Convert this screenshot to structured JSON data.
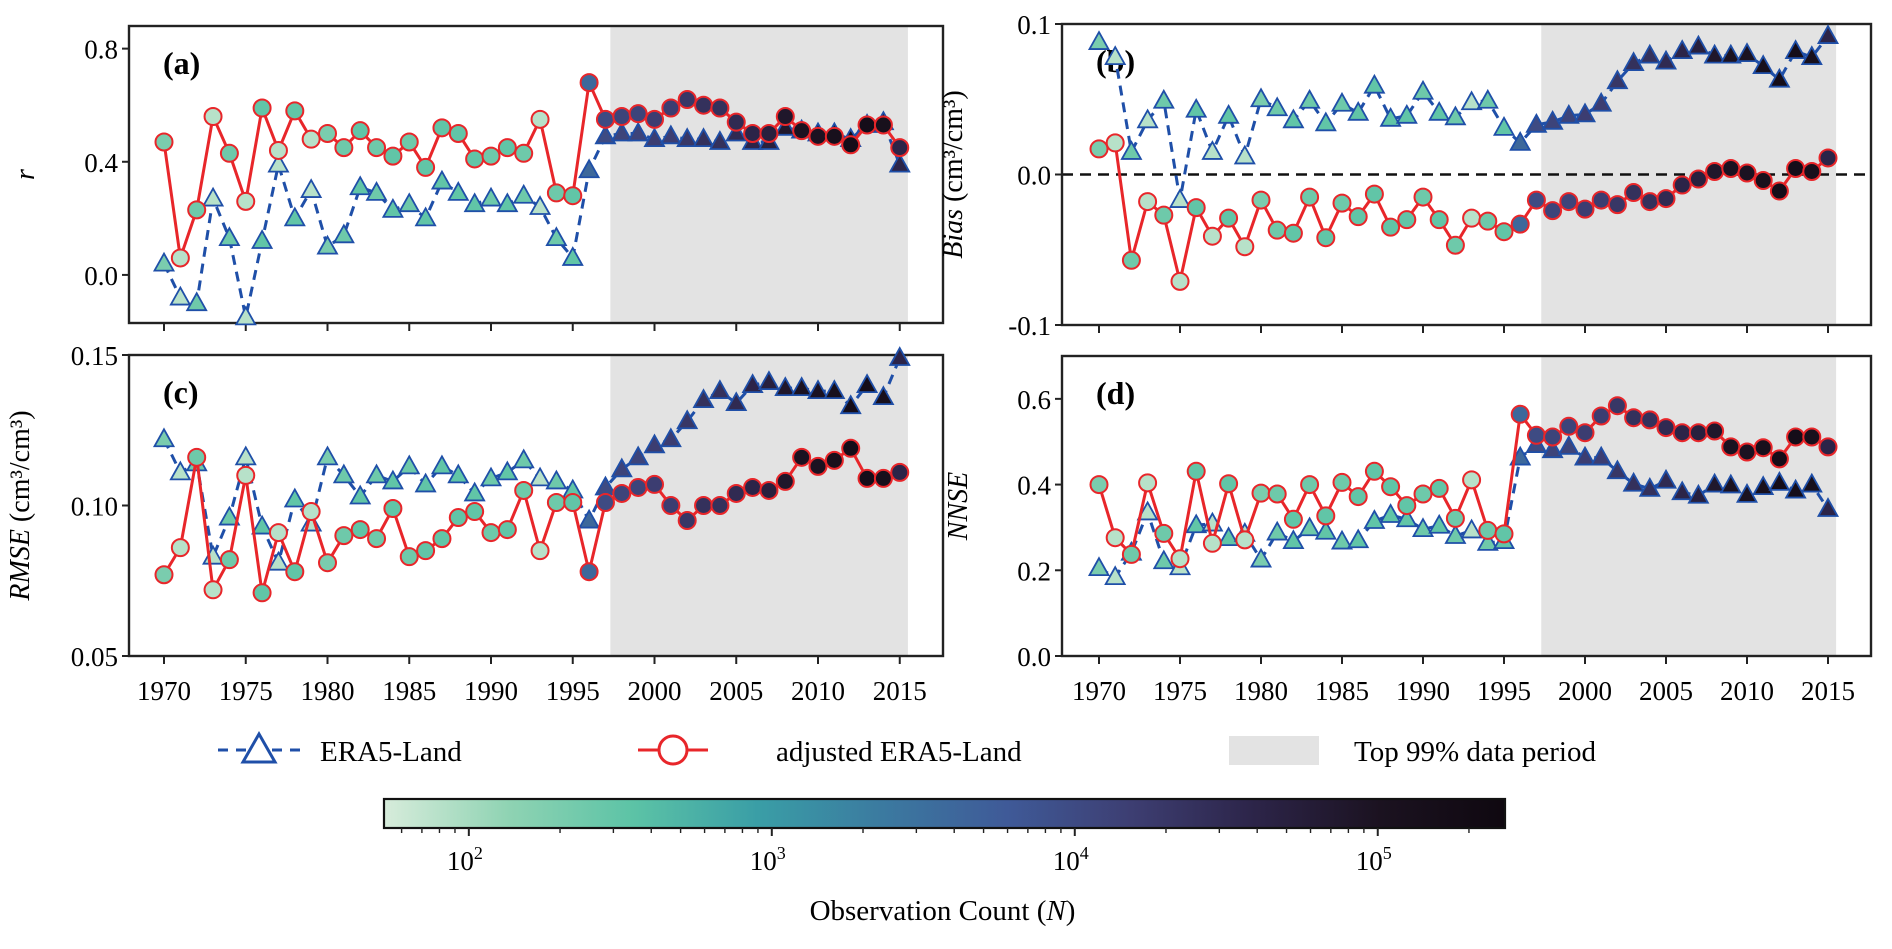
{
  "chart_data": {
    "type": "line",
    "years": [
      1970,
      1971,
      1972,
      1973,
      1974,
      1975,
      1976,
      1977,
      1978,
      1979,
      1980,
      1981,
      1982,
      1983,
      1984,
      1985,
      1986,
      1987,
      1988,
      1989,
      1990,
      1991,
      1992,
      1993,
      1994,
      1995,
      1996,
      1997,
      1998,
      1999,
      2000,
      2001,
      2002,
      2003,
      2004,
      2005,
      2006,
      2007,
      2008,
      2009,
      2010,
      2011,
      2012,
      2013,
      2014,
      2015
    ],
    "x_ticks": [
      1970,
      1975,
      1980,
      1985,
      1990,
      1995,
      2000,
      2005,
      2010,
      2015
    ],
    "xlim": [
      1967.8,
      2018.2
    ],
    "shaded_period": {
      "label": "Top 99% data period",
      "start": 1997.3,
      "end": 2015.5,
      "color": "#e3e3e3"
    },
    "log10_observation_count": [
      2.3,
      1.9,
      2.4,
      1.9,
      2.4,
      1.9,
      2.5,
      1.9,
      2.5,
      1.9,
      2.3,
      2.4,
      2.5,
      2.4,
      2.5,
      2.4,
      2.5,
      2.5,
      2.5,
      2.5,
      2.4,
      2.5,
      2.4,
      1.9,
      2.4,
      2.5,
      3.6,
      4.0,
      4.1,
      4.1,
      4.2,
      4.2,
      4.3,
      4.4,
      4.4,
      4.5,
      4.6,
      4.7,
      4.9,
      5.0,
      5.0,
      5.1,
      5.2,
      5.2,
      5.1,
      4.6
    ],
    "series_styles": {
      "ERA5-Land": {
        "line_color": "#1f4fa8",
        "dash": true,
        "marker": "triangle"
      },
      "adjusted ERA5-Land": {
        "line_color": "#e8262a",
        "dash": false,
        "marker": "circle"
      }
    },
    "panels": [
      {
        "id": "a",
        "tag": "(a)",
        "ylabel": "r",
        "ylabel_italic": true,
        "ylim": [
          -0.17,
          0.88
        ],
        "y_ticks": [
          0.0,
          0.4,
          0.8
        ],
        "y_tick_labels": [
          "0.0",
          "0.4",
          "0.8"
        ],
        "zero_line": false,
        "series": [
          {
            "name": "ERA5-Land",
            "values": [
              0.04,
              -0.08,
              -0.1,
              0.27,
              0.13,
              -0.15,
              0.12,
              0.39,
              0.2,
              0.3,
              0.1,
              0.14,
              0.31,
              0.29,
              0.23,
              0.25,
              0.2,
              0.33,
              0.29,
              0.25,
              0.27,
              0.25,
              0.28,
              0.24,
              0.13,
              0.06,
              0.37,
              0.49,
              0.5,
              0.5,
              0.48,
              0.49,
              0.48,
              0.48,
              0.47,
              0.5,
              0.47,
              0.47,
              0.52,
              0.51,
              0.5,
              0.5,
              0.48,
              0.53,
              0.54,
              0.39
            ]
          },
          {
            "name": "adjusted ERA5-Land",
            "values": [
              0.47,
              0.06,
              0.23,
              0.56,
              0.43,
              0.26,
              0.59,
              0.44,
              0.58,
              0.48,
              0.5,
              0.45,
              0.51,
              0.45,
              0.42,
              0.47,
              0.38,
              0.52,
              0.5,
              0.41,
              0.42,
              0.45,
              0.43,
              0.55,
              0.29,
              0.28,
              0.68,
              0.55,
              0.56,
              0.57,
              0.55,
              0.59,
              0.62,
              0.6,
              0.59,
              0.54,
              0.5,
              0.5,
              0.56,
              0.51,
              0.49,
              0.49,
              0.46,
              0.53,
              0.53,
              0.45
            ]
          }
        ]
      },
      {
        "id": "b",
        "tag": "(b)",
        "ylabel": "Bias",
        "ylabel_unit": "(cm³/cm³)",
        "ylabel_italic": true,
        "ylim": [
          -0.1,
          0.1
        ],
        "y_ticks": [
          -0.1,
          0.0,
          0.1
        ],
        "y_tick_labels": [
          "-0.1",
          "0.0",
          "0.1"
        ],
        "zero_line": true,
        "series": [
          {
            "name": "ERA5-Land",
            "values": [
              0.088,
              0.078,
              0.015,
              0.036,
              0.049,
              -0.017,
              0.043,
              0.015,
              0.039,
              0.012,
              0.05,
              0.044,
              0.036,
              0.049,
              0.034,
              0.047,
              0.041,
              0.059,
              0.037,
              0.039,
              0.055,
              0.041,
              0.038,
              0.048,
              0.049,
              0.031,
              0.021,
              0.033,
              0.035,
              0.039,
              0.04,
              0.047,
              0.062,
              0.074,
              0.079,
              0.075,
              0.082,
              0.085,
              0.079,
              0.079,
              0.08,
              0.072,
              0.063,
              0.082,
              0.078,
              0.092
            ]
          },
          {
            "name": "adjusted ERA5-Land",
            "values": [
              0.017,
              0.021,
              -0.057,
              -0.018,
              -0.027,
              -0.071,
              -0.022,
              -0.041,
              -0.029,
              -0.048,
              -0.017,
              -0.037,
              -0.039,
              -0.015,
              -0.042,
              -0.019,
              -0.028,
              -0.013,
              -0.035,
              -0.03,
              -0.015,
              -0.03,
              -0.047,
              -0.029,
              -0.031,
              -0.038,
              -0.033,
              -0.017,
              -0.024,
              -0.018,
              -0.023,
              -0.017,
              -0.02,
              -0.012,
              -0.018,
              -0.016,
              -0.007,
              -0.003,
              0.002,
              0.004,
              0.001,
              -0.004,
              -0.011,
              0.004,
              0.002,
              0.011
            ]
          }
        ]
      },
      {
        "id": "c",
        "tag": "(c)",
        "ylabel": "RMSE",
        "ylabel_unit": "(cm³/cm³)",
        "ylabel_italic": true,
        "ylim": [
          0.05,
          0.15
        ],
        "y_ticks": [
          0.05,
          0.1,
          0.15
        ],
        "y_tick_labels": [
          "0.05",
          "0.10",
          "0.15"
        ],
        "zero_line": false,
        "series": [
          {
            "name": "ERA5-Land",
            "values": [
              0.122,
              0.111,
              0.114,
              0.083,
              0.096,
              0.116,
              0.093,
              0.081,
              0.102,
              0.094,
              0.116,
              0.11,
              0.103,
              0.11,
              0.108,
              0.113,
              0.107,
              0.113,
              0.11,
              0.104,
              0.109,
              0.111,
              0.115,
              0.109,
              0.108,
              0.105,
              0.095,
              0.106,
              0.112,
              0.116,
              0.12,
              0.122,
              0.128,
              0.135,
              0.138,
              0.134,
              0.14,
              0.141,
              0.139,
              0.139,
              0.138,
              0.138,
              0.133,
              0.14,
              0.136,
              0.149
            ]
          },
          {
            "name": "adjusted ERA5-Land",
            "values": [
              0.077,
              0.086,
              0.116,
              0.072,
              0.082,
              0.11,
              0.071,
              0.091,
              0.078,
              0.098,
              0.081,
              0.09,
              0.092,
              0.089,
              0.099,
              0.083,
              0.085,
              0.089,
              0.096,
              0.098,
              0.091,
              0.092,
              0.105,
              0.085,
              0.101,
              0.101,
              0.078,
              0.101,
              0.104,
              0.106,
              0.107,
              0.1,
              0.095,
              0.1,
              0.1,
              0.104,
              0.106,
              0.105,
              0.108,
              0.116,
              0.113,
              0.115,
              0.119,
              0.109,
              0.109,
              0.111
            ]
          }
        ]
      },
      {
        "id": "d",
        "tag": "(d)",
        "ylabel": "NNSE",
        "ylabel_italic": true,
        "ylim": [
          0.0,
          0.7
        ],
        "y_ticks": [
          0.0,
          0.2,
          0.4,
          0.6
        ],
        "y_tick_labels": [
          "0.0",
          "0.2",
          "0.4",
          "0.6"
        ],
        "zero_line": false,
        "series": [
          {
            "name": "ERA5-Land",
            "values": [
              0.205,
              0.184,
              0.241,
              0.335,
              0.221,
              0.207,
              0.305,
              0.309,
              0.275,
              0.285,
              0.225,
              0.288,
              0.268,
              0.298,
              0.29,
              0.267,
              0.27,
              0.315,
              0.329,
              0.319,
              0.296,
              0.304,
              0.28,
              0.293,
              0.264,
              0.268,
              0.463,
              0.492,
              0.48,
              0.488,
              0.463,
              0.463,
              0.431,
              0.402,
              0.39,
              0.409,
              0.382,
              0.374,
              0.4,
              0.398,
              0.376,
              0.394,
              0.404,
              0.386,
              0.4,
              0.343
            ]
          },
          {
            "name": "adjusted ERA5-Land",
            "values": [
              0.4,
              0.276,
              0.237,
              0.404,
              0.286,
              0.227,
              0.431,
              0.263,
              0.402,
              0.271,
              0.38,
              0.378,
              0.319,
              0.4,
              0.327,
              0.405,
              0.372,
              0.431,
              0.395,
              0.351,
              0.378,
              0.391,
              0.321,
              0.411,
              0.293,
              0.285,
              0.564,
              0.515,
              0.511,
              0.536,
              0.521,
              0.56,
              0.584,
              0.556,
              0.551,
              0.533,
              0.521,
              0.521,
              0.525,
              0.488,
              0.476,
              0.486,
              0.46,
              0.511,
              0.511,
              0.488
            ]
          }
        ]
      }
    ],
    "legend": {
      "placement": "bottom-center",
      "items": [
        {
          "label": "ERA5-Land",
          "kind": "line-triangle-dashed"
        },
        {
          "label": "adjusted ERA5-Land",
          "kind": "line-circle"
        },
        {
          "label": "Top 99% data period",
          "kind": "patch"
        }
      ]
    },
    "colorbar": {
      "label": "Observation Count",
      "label_symbol": "N",
      "scale": "log",
      "range_log10": [
        1.72,
        5.42
      ],
      "ticks_log10": [
        2,
        3,
        4,
        5
      ],
      "tick_labels": [
        "10",
        "10",
        "10",
        "10"
      ],
      "tick_exponents": [
        "2",
        "3",
        "4",
        "5"
      ],
      "colormap_stops": [
        "#d7ecdb",
        "#8fd3b3",
        "#5cc3a6",
        "#3a9ea6",
        "#3b7aa0",
        "#3f5a98",
        "#3d3e72",
        "#2c2448",
        "#1b1220",
        "#0f0810"
      ]
    }
  }
}
